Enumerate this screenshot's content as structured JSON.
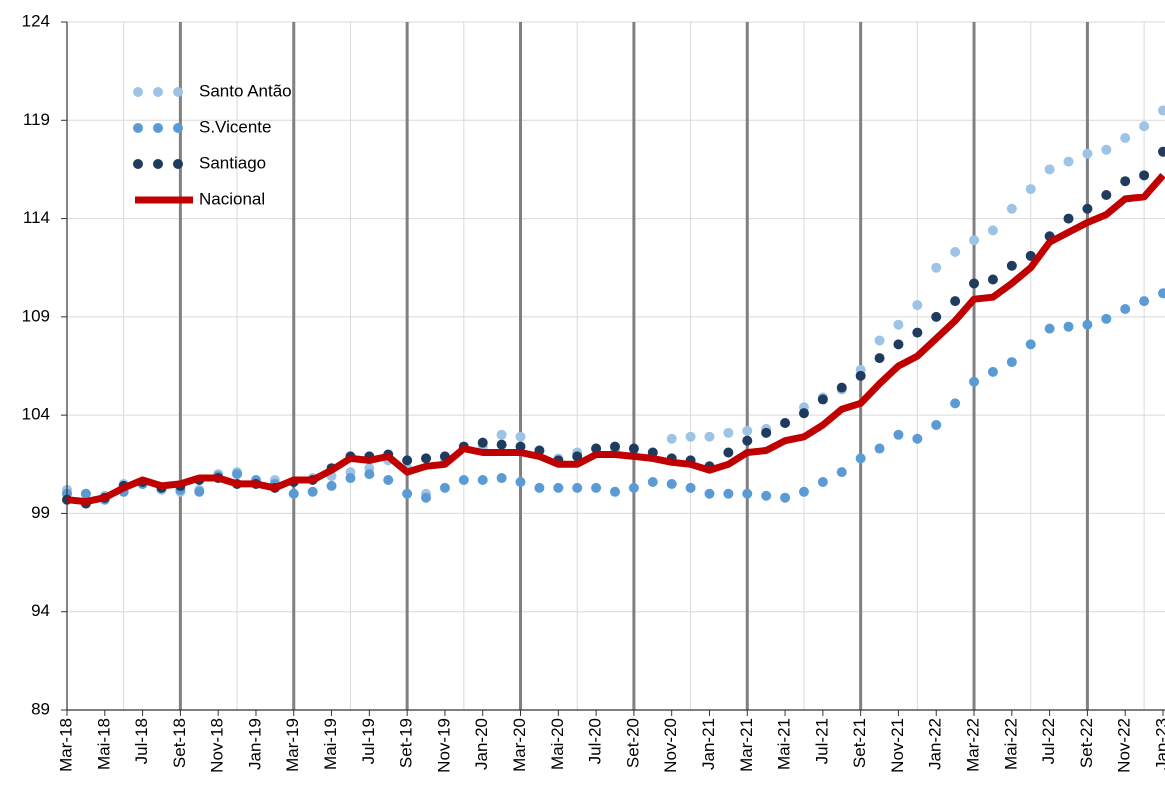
{
  "chart_data": {
    "type": "line",
    "categories": [
      "Mar-18",
      null,
      "Mai-18",
      null,
      "Jul-18",
      null,
      "Set-18",
      null,
      "Nov-18",
      null,
      "Jan-19",
      null,
      "Mar-19",
      null,
      "Mai-19",
      null,
      "Jul-19",
      null,
      "Set-19",
      null,
      "Nov-19",
      null,
      "Jan-20",
      null,
      "Mar-20",
      null,
      "Mai-20",
      null,
      "Jul-20",
      null,
      "Set-20",
      null,
      "Nov-20",
      null,
      "Jan-21",
      null,
      "Mar-21",
      null,
      "Mai-21",
      null,
      "Jul-21",
      null,
      "Set-21",
      null,
      "Nov-21",
      null,
      "Jan-22",
      null,
      "Mar-22",
      null,
      "Mai-22",
      null,
      "Jul-22",
      null,
      "Set-22",
      null,
      "Nov-22",
      null,
      "Jan-23"
    ],
    "series": [
      {
        "name": "Santo Antão",
        "color": "#9dc3e6",
        "style": "dots",
        "values": [
          100.2,
          100.0,
          99.9,
          100.5,
          100.5,
          100.2,
          100.1,
          100.2,
          101.0,
          101.1,
          100.6,
          100.7,
          100.0,
          100.8,
          100.9,
          101.1,
          101.3,
          101.7,
          101.3,
          100.0,
          101.6,
          102.4,
          102.4,
          103.0,
          102.9,
          102.2,
          101.8,
          102.1,
          102.3,
          102.2,
          102.0,
          102.1,
          102.8,
          102.9,
          102.9,
          103.1,
          103.2,
          103.3,
          103.6,
          104.4,
          104.9,
          105.3,
          106.3,
          107.8,
          108.6,
          109.6,
          111.5,
          112.3,
          112.9,
          113.4,
          114.5,
          115.5,
          116.5,
          116.9,
          117.3,
          117.5,
          118.1,
          118.7,
          119.5
        ]
      },
      {
        "name": "S.Vicente",
        "color": "#5b9bd5",
        "style": "dots",
        "values": [
          100.0,
          100.0,
          99.7,
          100.1,
          100.5,
          100.3,
          100.2,
          100.1,
          100.9,
          101.0,
          100.7,
          100.5,
          100.0,
          100.1,
          100.4,
          100.8,
          101.0,
          100.7,
          100.0,
          99.8,
          100.3,
          100.7,
          100.7,
          100.8,
          100.6,
          100.3,
          100.3,
          100.3,
          100.3,
          100.1,
          100.3,
          100.6,
          100.5,
          100.3,
          100.0,
          100.0,
          100.0,
          99.9,
          99.8,
          100.1,
          100.6,
          101.1,
          101.8,
          102.3,
          103.0,
          102.8,
          103.5,
          104.6,
          105.7,
          106.2,
          106.7,
          107.6,
          108.4,
          108.5,
          108.6,
          108.9,
          109.4,
          109.8,
          110.2
        ]
      },
      {
        "name": "Santiago",
        "color": "#1f3b5e",
        "style": "dots",
        "values": [
          99.7,
          99.5,
          99.8,
          100.4,
          100.6,
          100.3,
          100.4,
          100.7,
          100.8,
          100.5,
          100.5,
          100.3,
          100.6,
          100.7,
          101.3,
          101.9,
          101.9,
          102.0,
          101.7,
          101.8,
          101.9,
          102.4,
          102.6,
          102.5,
          102.4,
          102.2,
          101.7,
          101.9,
          102.3,
          102.4,
          102.3,
          102.1,
          101.8,
          101.7,
          101.4,
          102.1,
          102.7,
          103.1,
          103.6,
          104.1,
          104.8,
          105.4,
          106.0,
          106.9,
          107.6,
          108.2,
          109.0,
          109.8,
          110.7,
          110.9,
          111.6,
          112.1,
          113.1,
          114.0,
          114.5,
          115.2,
          115.9,
          116.2,
          117.4
        ]
      },
      {
        "name": "Nacional",
        "color": "#c00000",
        "style": "line",
        "values": [
          99.7,
          99.6,
          99.8,
          100.3,
          100.7,
          100.4,
          100.5,
          100.8,
          100.8,
          100.5,
          100.5,
          100.3,
          100.7,
          100.7,
          101.2,
          101.8,
          101.7,
          101.9,
          101.1,
          101.4,
          101.5,
          102.3,
          102.1,
          102.1,
          102.1,
          101.9,
          101.5,
          101.5,
          102.0,
          102.0,
          101.9,
          101.8,
          101.6,
          101.5,
          101.2,
          101.5,
          102.1,
          102.2,
          102.7,
          102.9,
          103.5,
          104.3,
          104.6,
          105.6,
          106.5,
          107.0,
          107.9,
          108.8,
          109.9,
          110.0,
          110.7,
          111.5,
          112.8,
          113.3,
          113.8,
          114.2,
          115.0,
          115.1,
          116.2
        ]
      }
    ],
    "ylim": [
      89,
      124
    ],
    "yticks": [
      89,
      94,
      99,
      104,
      109,
      114,
      119,
      124
    ],
    "grid": true
  }
}
